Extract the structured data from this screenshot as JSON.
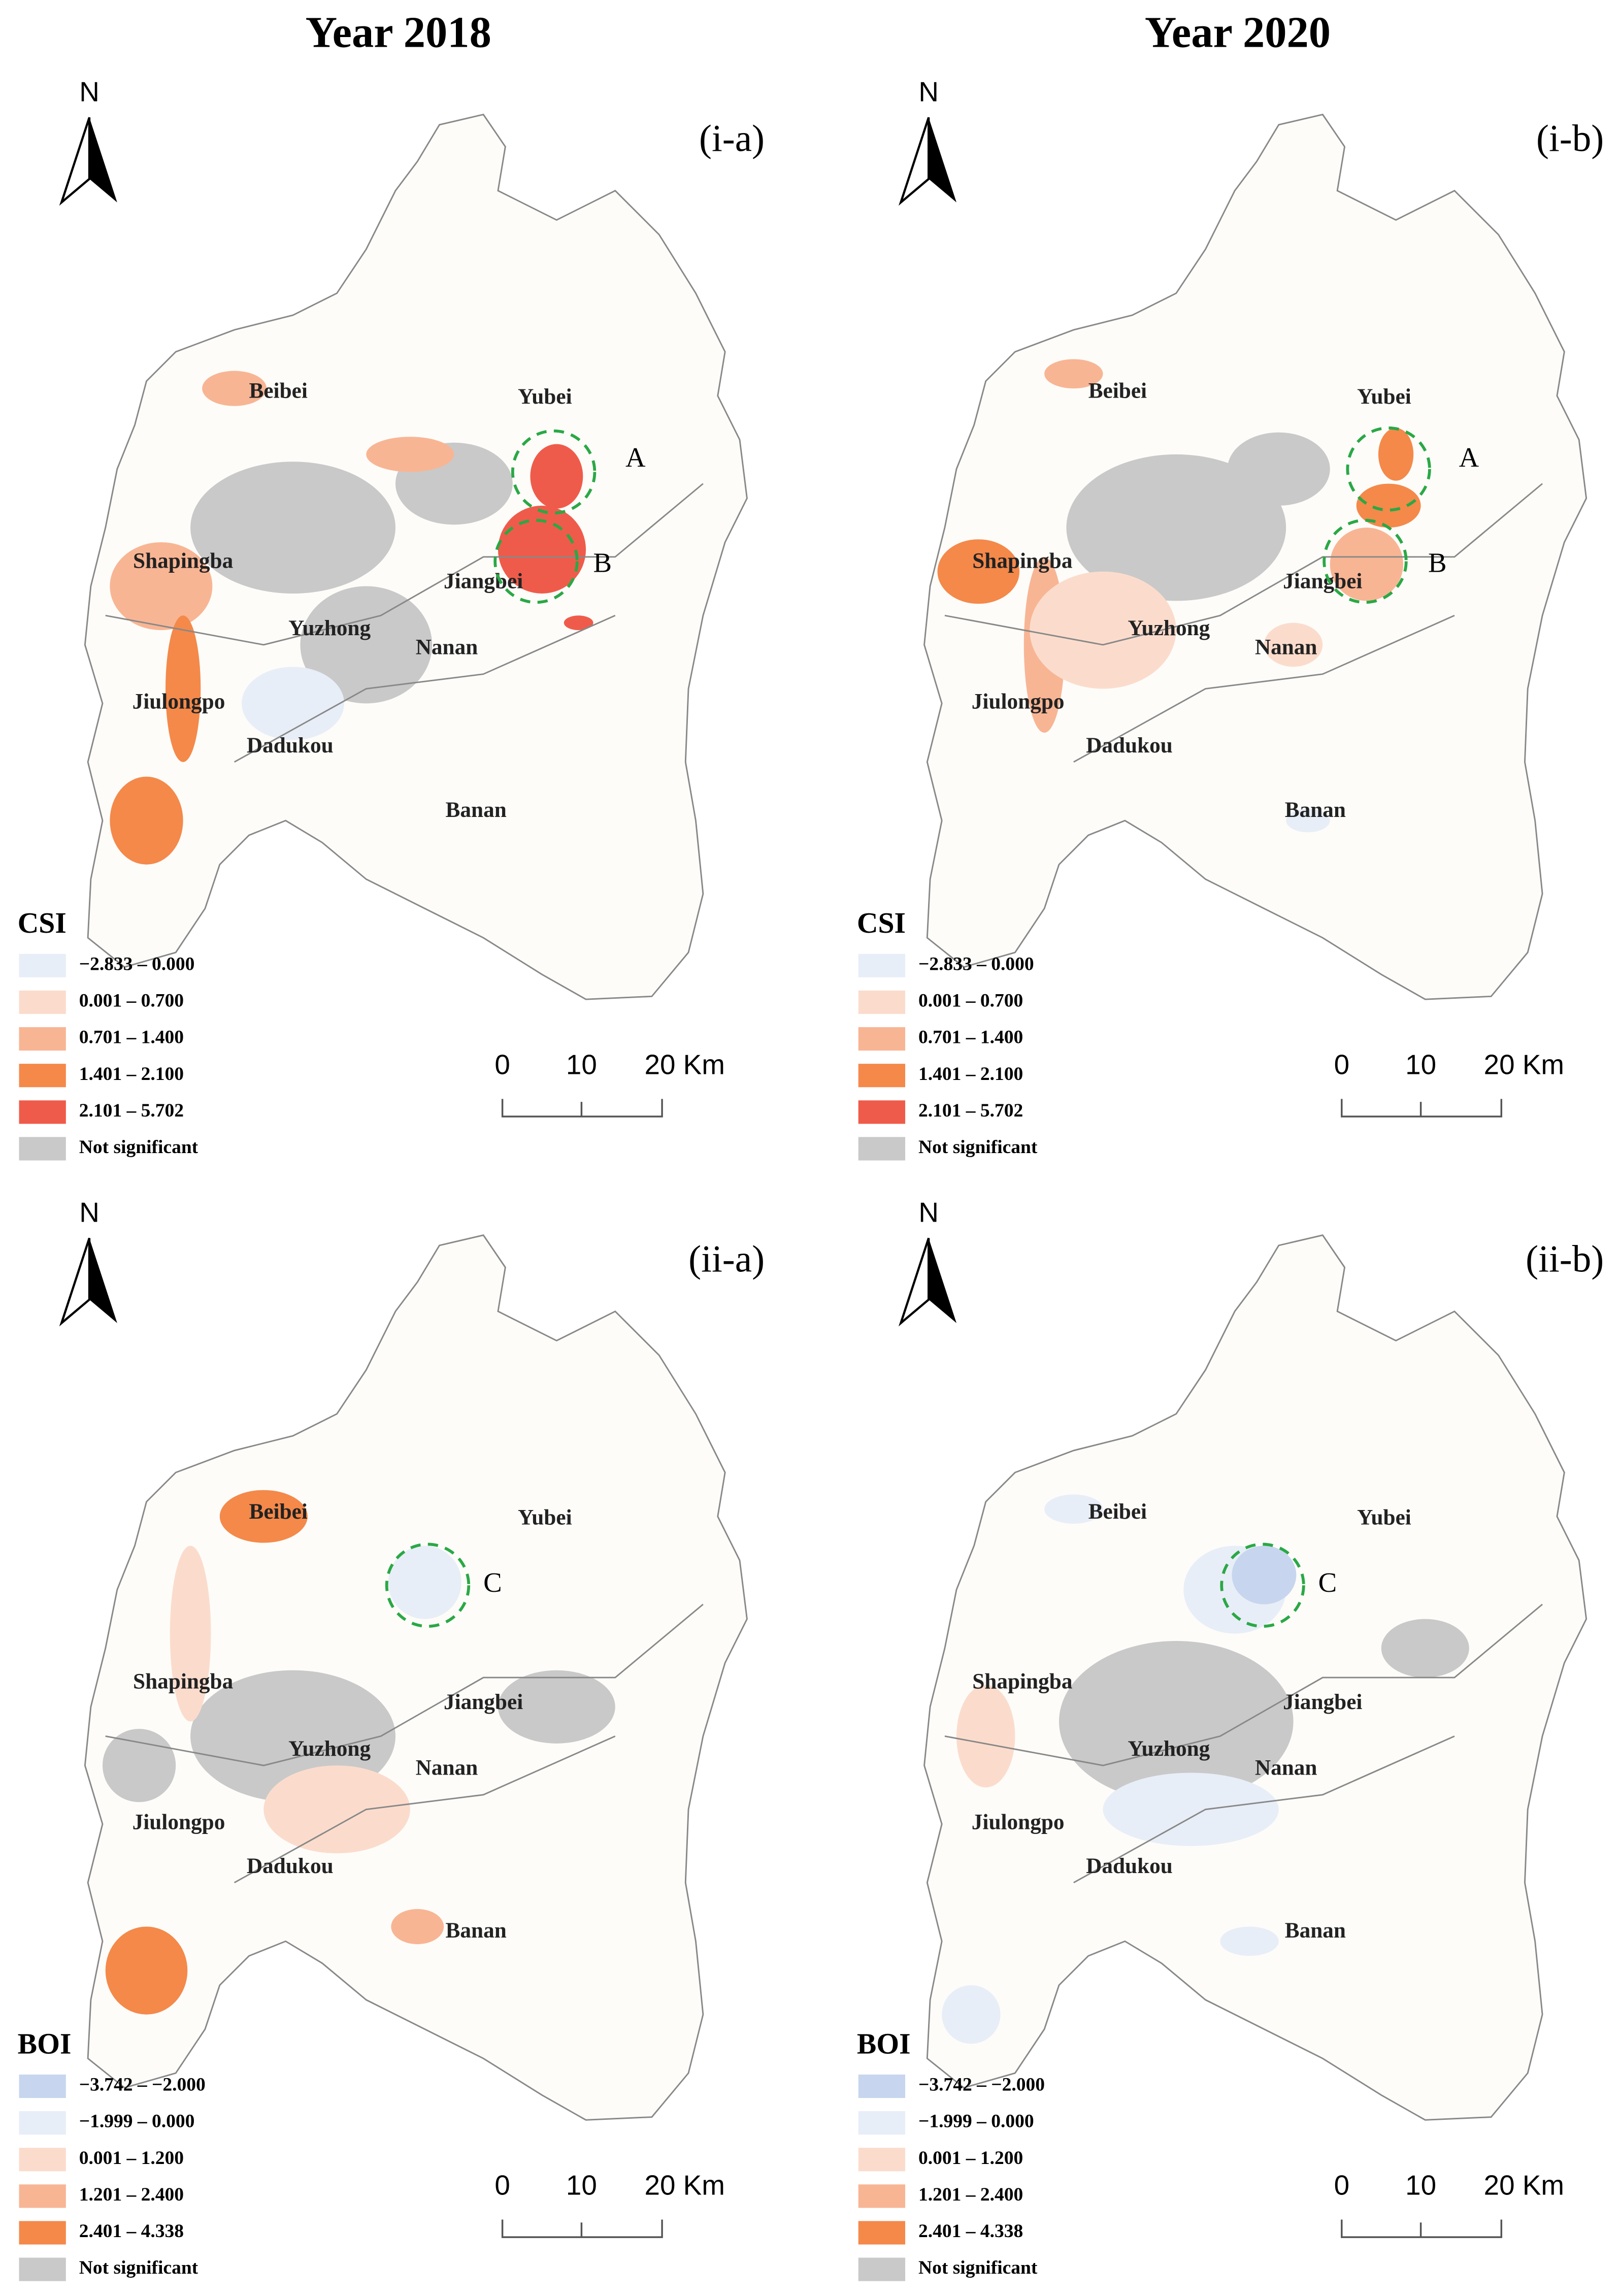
{
  "columns": [
    "Year 2018",
    "Year 2020"
  ],
  "north": "N",
  "scale_bar": [
    "0",
    "10",
    "20 Km"
  ],
  "districts": [
    "Beibei",
    "Yubei",
    "Shapingba",
    "Jiangbei",
    "Yuzhong",
    "Nanan",
    "Jiulongpo",
    "Dadukou",
    "Banan"
  ],
  "panels": [
    {
      "label": "(i-a)",
      "legend_title": "CSI",
      "markers": [
        "A",
        "B"
      ],
      "legend": [
        {
          "label": "−2.833 – 0.000",
          "color": "#e8eef7"
        },
        {
          "label": "0.001 – 0.700",
          "color": "#fbdccc"
        },
        {
          "label": "0.701 – 1.400",
          "color": "#f8b594"
        },
        {
          "label": "1.401 – 2.100",
          "color": "#f4894a"
        },
        {
          "label": "2.101 – 5.702",
          "color": "#ef5b4a"
        },
        {
          "label": "Not significant",
          "color": "#c9c9c9"
        }
      ]
    },
    {
      "label": "(i-b)",
      "legend_title": "CSI",
      "markers": [
        "A",
        "B"
      ],
      "legend": [
        {
          "label": "−2.833 – 0.000",
          "color": "#e8eef7"
        },
        {
          "label": "0.001 – 0.700",
          "color": "#fbdccc"
        },
        {
          "label": "0.701 – 1.400",
          "color": "#f8b594"
        },
        {
          "label": "1.401 – 2.100",
          "color": "#f4894a"
        },
        {
          "label": "2.101 – 5.702",
          "color": "#ef5b4a"
        },
        {
          "label": "Not significant",
          "color": "#c9c9c9"
        }
      ]
    },
    {
      "label": "(ii-a)",
      "legend_title": "BOI",
      "markers": [
        "C"
      ],
      "legend": [
        {
          "label": "−3.742 – −2.000",
          "color": "#c7d6ee"
        },
        {
          "label": "−1.999 – 0.000",
          "color": "#e8eef7"
        },
        {
          "label": "0.001 – 1.200",
          "color": "#fbdccc"
        },
        {
          "label": "1.201 – 2.400",
          "color": "#f8b594"
        },
        {
          "label": "2.401 – 4.338",
          "color": "#f4894a"
        },
        {
          "label": "Not significant",
          "color": "#c9c9c9"
        }
      ]
    },
    {
      "label": "(ii-b)",
      "legend_title": "BOI",
      "markers": [
        "C"
      ],
      "legend": [
        {
          "label": "−3.742 – −2.000",
          "color": "#c7d6ee"
        },
        {
          "label": "−1.999 – 0.000",
          "color": "#e8eef7"
        },
        {
          "label": "0.001 – 1.200",
          "color": "#fbdccc"
        },
        {
          "label": "1.201 – 2.400",
          "color": "#f8b594"
        },
        {
          "label": "2.401 – 4.338",
          "color": "#f4894a"
        },
        {
          "label": "Not significant",
          "color": "#c9c9c9"
        }
      ]
    }
  ]
}
